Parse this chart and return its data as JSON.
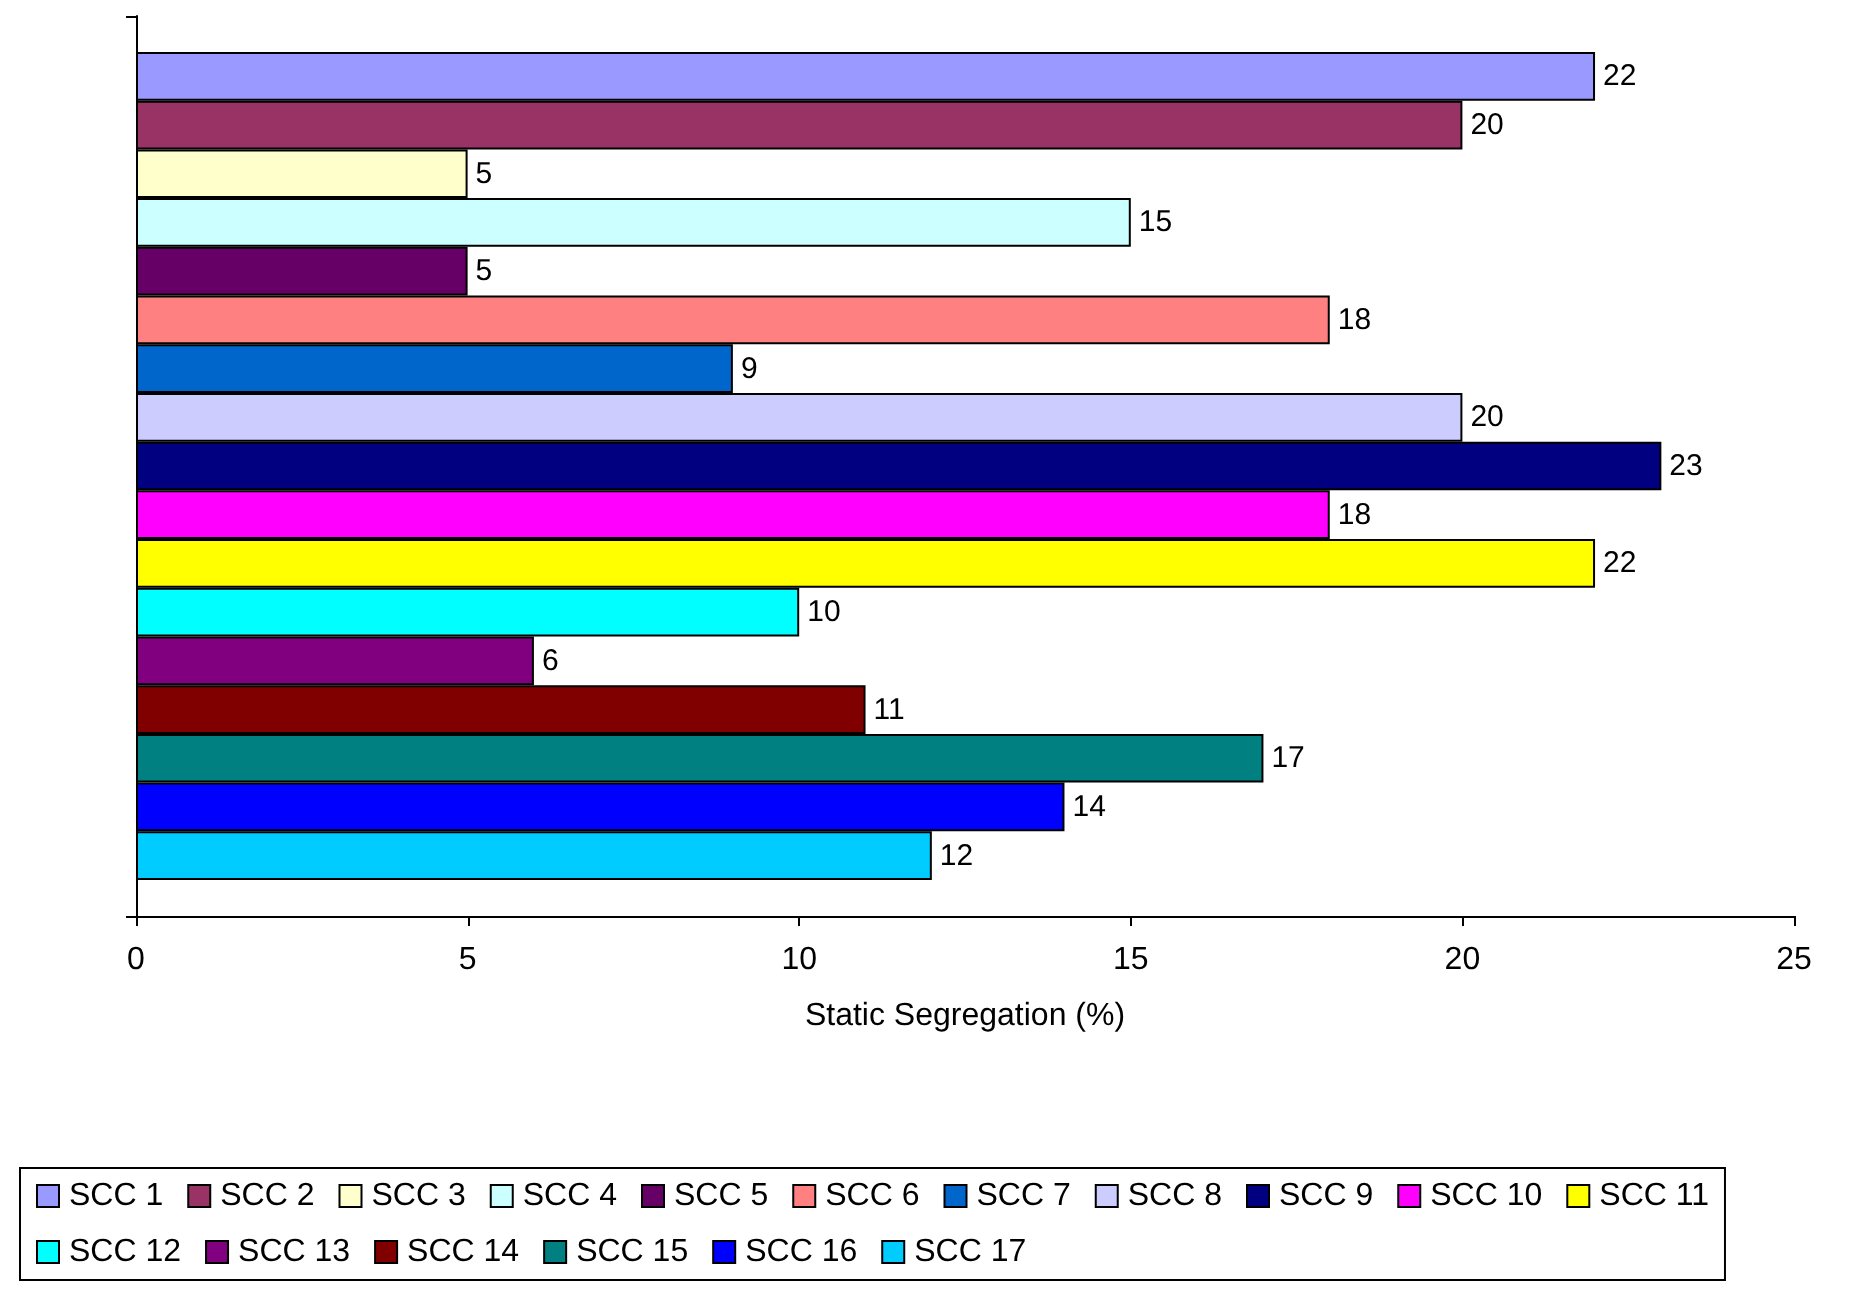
{
  "chart_data": {
    "type": "bar",
    "orientation": "horizontal",
    "categories": [
      null
    ],
    "series": [
      {
        "name": "SCC 1",
        "color": "#9999ff",
        "values": [
          22
        ]
      },
      {
        "name": "SCC 2",
        "color": "#993366",
        "values": [
          20
        ]
      },
      {
        "name": "SCC 3",
        "color": "#ffffcc",
        "values": [
          5
        ]
      },
      {
        "name": "SCC 4",
        "color": "#ccffff",
        "values": [
          15
        ]
      },
      {
        "name": "SCC 5",
        "color": "#660066",
        "values": [
          5
        ]
      },
      {
        "name": "SCC 6",
        "color": "#ff8080",
        "values": [
          18
        ]
      },
      {
        "name": "SCC 7",
        "color": "#0066cc",
        "values": [
          9
        ]
      },
      {
        "name": "SCC 8",
        "color": "#ccccff",
        "values": [
          20
        ]
      },
      {
        "name": "SCC 9",
        "color": "#000080",
        "values": [
          23
        ]
      },
      {
        "name": "SCC 10",
        "color": "#ff00ff",
        "values": [
          18
        ]
      },
      {
        "name": "SCC 11",
        "color": "#ffff00",
        "values": [
          22
        ]
      },
      {
        "name": "SCC 12",
        "color": "#00ffff",
        "values": [
          10
        ]
      },
      {
        "name": "SCC 13",
        "color": "#800080",
        "values": [
          6
        ]
      },
      {
        "name": "SCC 14",
        "color": "#800000",
        "values": [
          11
        ]
      },
      {
        "name": "SCC 15",
        "color": "#008080",
        "values": [
          17
        ]
      },
      {
        "name": "SCC 16",
        "color": "#0000ff",
        "values": [
          14
        ]
      },
      {
        "name": "SCC 17",
        "color": "#00ccff",
        "values": [
          12
        ]
      }
    ],
    "xlabel": "Static Segregation (%)",
    "xlim": [
      0,
      25
    ],
    "xticks": [
      0,
      5,
      10,
      15,
      20,
      25
    ],
    "data_labels": true,
    "legend": "bottom",
    "grid": false
  }
}
